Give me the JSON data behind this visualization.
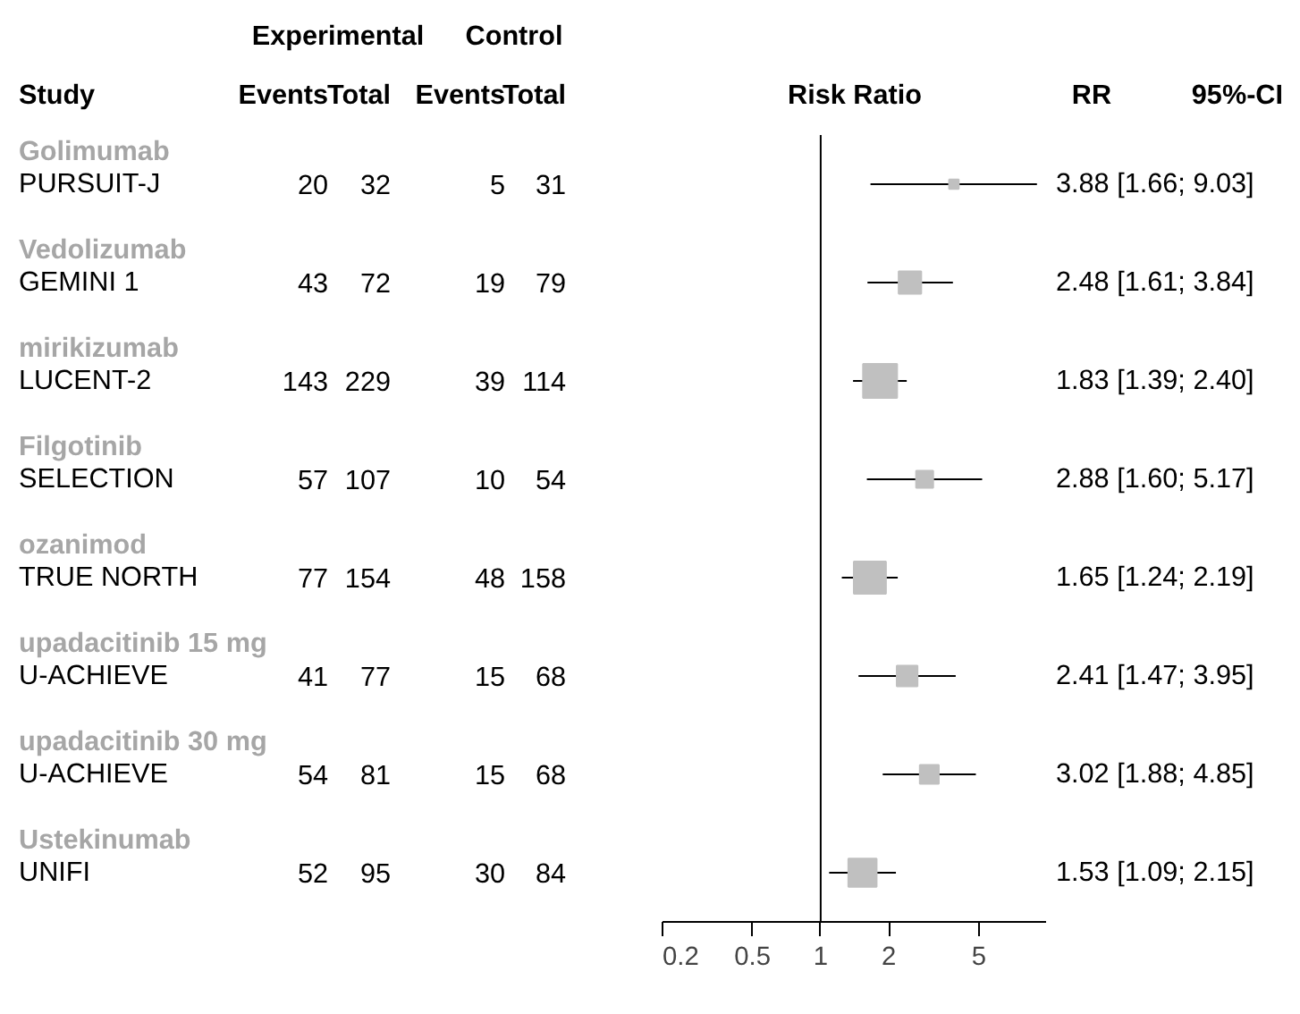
{
  "chart_data": [
    {
      "type": "other",
      "ylabel": "Study",
      "categories": [
        "Events",
        "Total",
        "Events",
        "Total"
      ],
      "y_categories": [
        "PURSUIT-J",
        "GEMINI 1",
        "LUCENT-2",
        "SELECTION",
        "TRUE NORTH",
        "U-ACHIEVE",
        "U-ACHIEVE",
        "UNIFI"
      ],
      "y2_categories": [
        "Golimumab",
        "Vedolizumab",
        "mirikizumab",
        "Filgotinib",
        "ozanimod",
        "upadacitinib 15 mg",
        "upadacitinib 30 mg",
        "Ustekinumab"
      ],
      "annotations": [
        "Experimental",
        "Control",
        "20",
        "32",
        "5",
        "31",
        "43",
        "72",
        "19",
        "79",
        "143",
        "229",
        "39",
        "114",
        "57",
        "107",
        "10",
        "54",
        "77",
        "154",
        "48",
        "158",
        "41",
        "77",
        "15",
        "68",
        "54",
        "81",
        "15",
        "68",
        "52",
        "95",
        "30",
        "84"
      ]
    },
    {
      "type": "bubble",
      "orientation": "horizontal",
      "title": "Risk Ratio",
      "log": "x",
      "marker": "square",
      "categories": [
        null,
        null,
        null,
        null,
        null,
        null,
        null,
        null
      ],
      "values": [
        3.88,
        2.48,
        1.83,
        2.88,
        1.65,
        2.41,
        3.02,
        1.53
      ],
      "errors": [
        [
          1.66,
          9.03
        ],
        [
          1.61,
          3.84
        ],
        [
          1.39,
          2.4
        ],
        [
          1.6,
          5.17
        ],
        [
          1.24,
          2.19
        ],
        [
          1.47,
          3.95
        ],
        [
          1.88,
          4.85
        ],
        [
          1.09,
          2.15
        ]
      ],
      "sizes": [
        0.08,
        0.44,
        1,
        0.25,
        0.89,
        0.37,
        0.31,
        0.69
      ],
      "color": "#c0c0c0",
      "value_labels": [
        "3.88 [1.66; 9.03]",
        "2.48 [1.61; 3.84]",
        "1.83 [1.39; 2.40]",
        "2.88 [1.60; 5.17]",
        "1.65 [1.24; 2.19]",
        "2.41 [1.47; 3.95]",
        "3.02 [1.88; 4.85]",
        "1.53 [1.09; 2.15]"
      ],
      "annotations": [
        "RR",
        "95%-CI"
      ],
      "xlim": [
        0.2,
        10
      ],
      "xticks": [
        0.2,
        0.5,
        1,
        2,
        5
      ],
      "ref_lines": [
        {
          "axis": "x",
          "value": 1,
          "color": "#000000"
        }
      ],
      "grid": false
    }
  ]
}
